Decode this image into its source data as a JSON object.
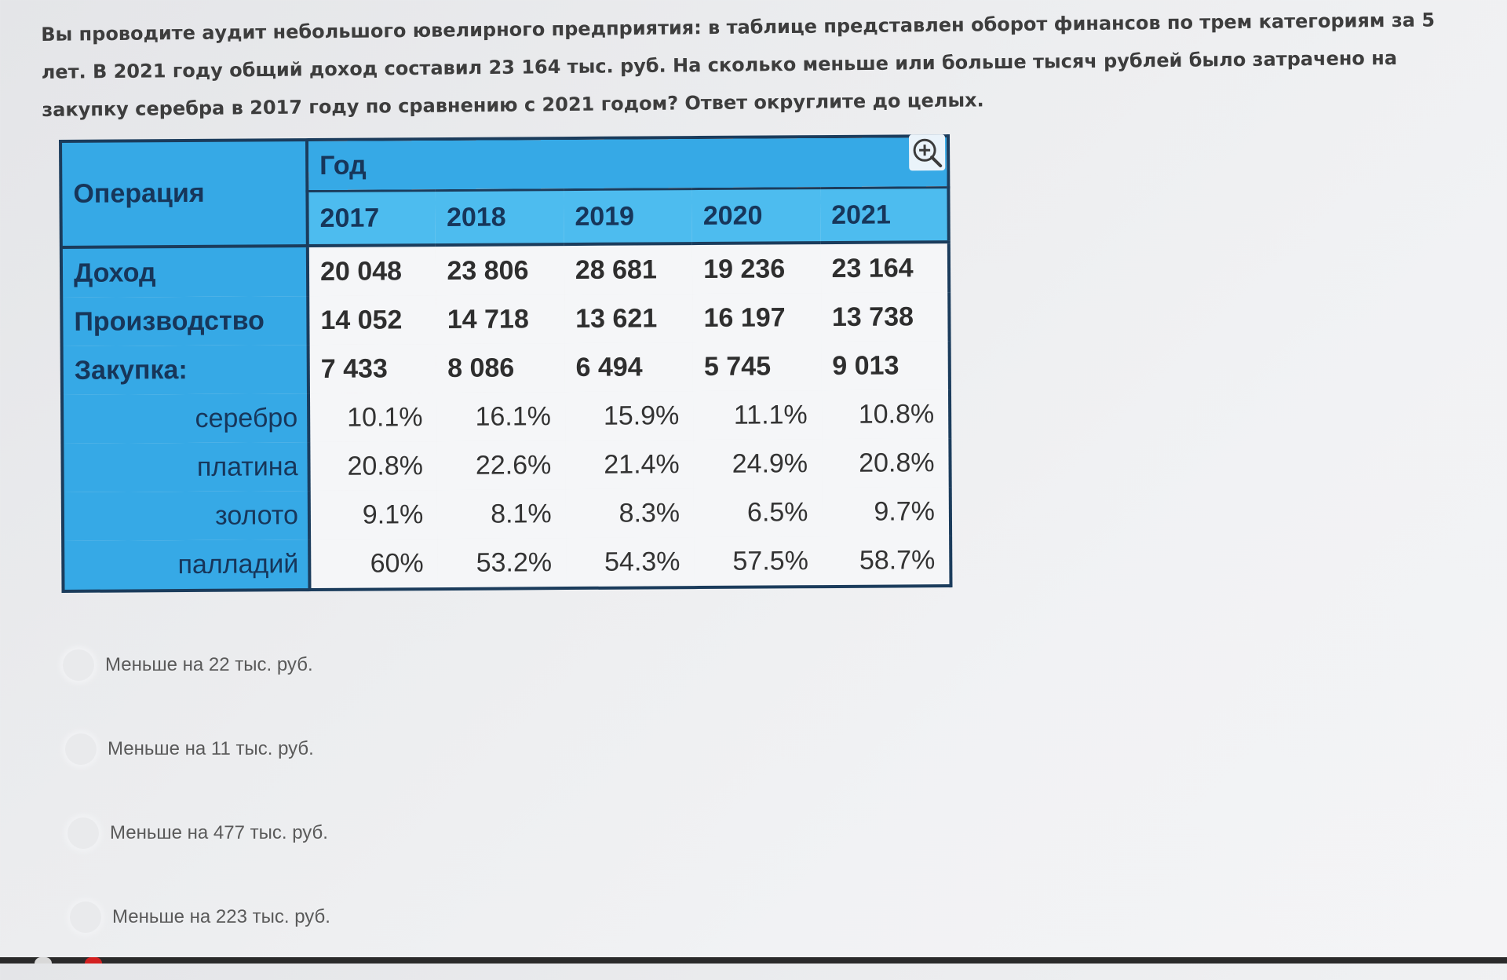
{
  "question": {
    "text": "Вы проводите аудит небольшого ювелирного предприятия: в таблице представлен оборот финансов по трем категориям за 5 лет. В 2021 году общий доход составил 23 164 тыс. руб. На сколько меньше или больше тысяч рублей было затрачено на закупку серебра в 2017 году по сравнению с 2021 годом? Ответ округлите до целых."
  },
  "table": {
    "header_operation": "Операция",
    "header_year": "Год",
    "years": [
      "2017",
      "2018",
      "2019",
      "2020",
      "2021"
    ],
    "rows": [
      {
        "label": "Доход",
        "kind": "main",
        "values": [
          "20 048",
          "23 806",
          "28 681",
          "19 236",
          "23 164"
        ]
      },
      {
        "label": "Производство",
        "kind": "main",
        "values": [
          "14 052",
          "14 718",
          "13 621",
          "16 197",
          "13 738"
        ]
      },
      {
        "label": "Закупка:",
        "kind": "main",
        "values": [
          "7 433",
          "8 086",
          "6 494",
          "5 745",
          "9 013"
        ]
      },
      {
        "label": "серебро",
        "kind": "sub",
        "values": [
          "10.1%",
          "16.1%",
          "15.9%",
          "11.1%",
          "10.8%"
        ]
      },
      {
        "label": "платина",
        "kind": "sub",
        "values": [
          "20.8%",
          "22.6%",
          "21.4%",
          "24.9%",
          "20.8%"
        ]
      },
      {
        "label": "золото",
        "kind": "sub",
        "values": [
          "9.1%",
          "8.1%",
          "8.3%",
          "6.5%",
          "9.7%"
        ]
      },
      {
        "label": "палладий",
        "kind": "sub",
        "values": [
          "60%",
          "53.2%",
          "54.3%",
          "57.5%",
          "58.7%"
        ]
      }
    ],
    "zoom_icon": "zoom-in-icon"
  },
  "answers": [
    {
      "label": "Меньше на 22 тыс. руб."
    },
    {
      "label": "Меньше на 11 тыс. руб."
    },
    {
      "label": "Меньше на 477 тыс. руб."
    },
    {
      "label": "Меньше на 223 тыс. руб."
    }
  ],
  "colors": {
    "header_blue": "#36a9e6",
    "year_blue": "#4dbcef",
    "border_navy": "#1b3c5c"
  }
}
